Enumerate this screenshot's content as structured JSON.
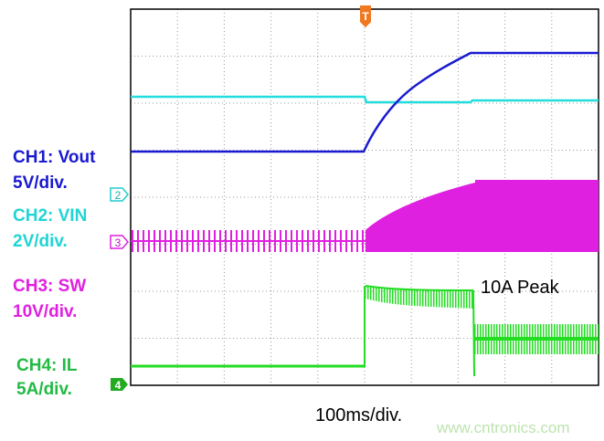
{
  "channels": [
    {
      "name": "CH1: Vout",
      "scale": "5V/div."
    },
    {
      "name": "CH2: VIN",
      "scale": "2V/div."
    },
    {
      "name": "CH3: SW",
      "scale": "10V/div."
    },
    {
      "name": "CH4: IL",
      "scale": "5A/div."
    }
  ],
  "markers": {
    "ch2": "2",
    "ch3": "3",
    "ch4": "4",
    "trigger": "T"
  },
  "annotation": "10A Peak",
  "timebase": "100ms/div.",
  "watermark": "www.cntronics.com"
}
